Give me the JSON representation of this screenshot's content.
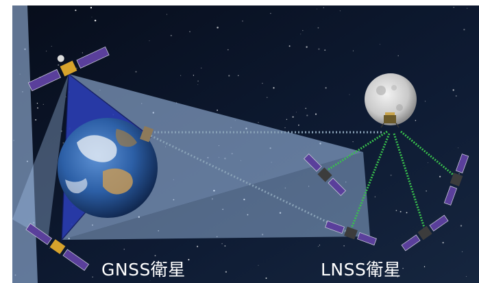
{
  "labels": {
    "gnss": "GNSS衛星",
    "lnss": "LNSS衛星"
  },
  "colors": {
    "space": "#0b1424",
    "beam": "#a9c9f2",
    "gnss_triangle": "#1d2fa8",
    "signal_link": "#39c24d",
    "relay_link": "#8aa3b8"
  },
  "icons": {
    "earth": "earth-icon",
    "moon": "moon-icon",
    "satellite": "satellite-icon",
    "lander": "lunar-lander-icon"
  }
}
